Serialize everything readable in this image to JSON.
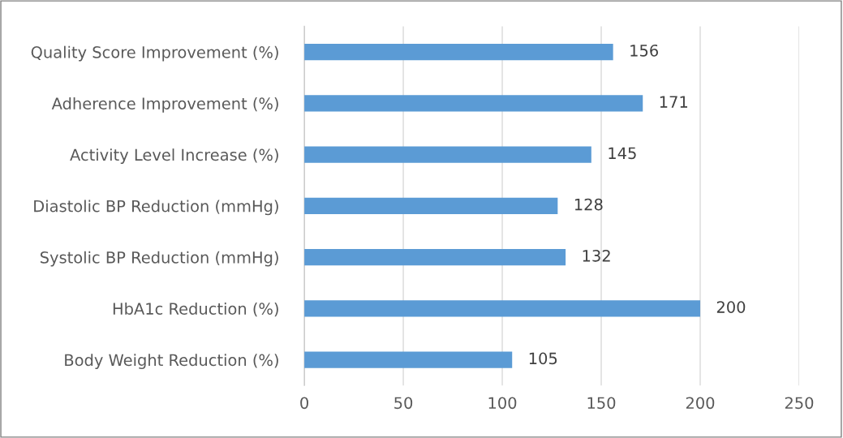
{
  "chart_data": {
    "type": "bar",
    "orientation": "horizontal",
    "categories": [
      "Quality Score Improvement (%)",
      "Adherence Improvement (%)",
      "Activity Level Increase (%)",
      "Diastolic BP Reduction (mmHg)",
      "Systolic BP Reduction (mmHg)",
      "HbA1c Reduction (%)",
      "Body Weight Reduction (%)"
    ],
    "values": [
      156,
      171,
      145,
      128,
      132,
      200,
      105
    ],
    "color": "#5b9bd5",
    "xlim": [
      0,
      250
    ],
    "xticks": [
      0,
      50,
      100,
      150,
      200,
      250
    ],
    "grid": "x",
    "data_labels": true
  }
}
